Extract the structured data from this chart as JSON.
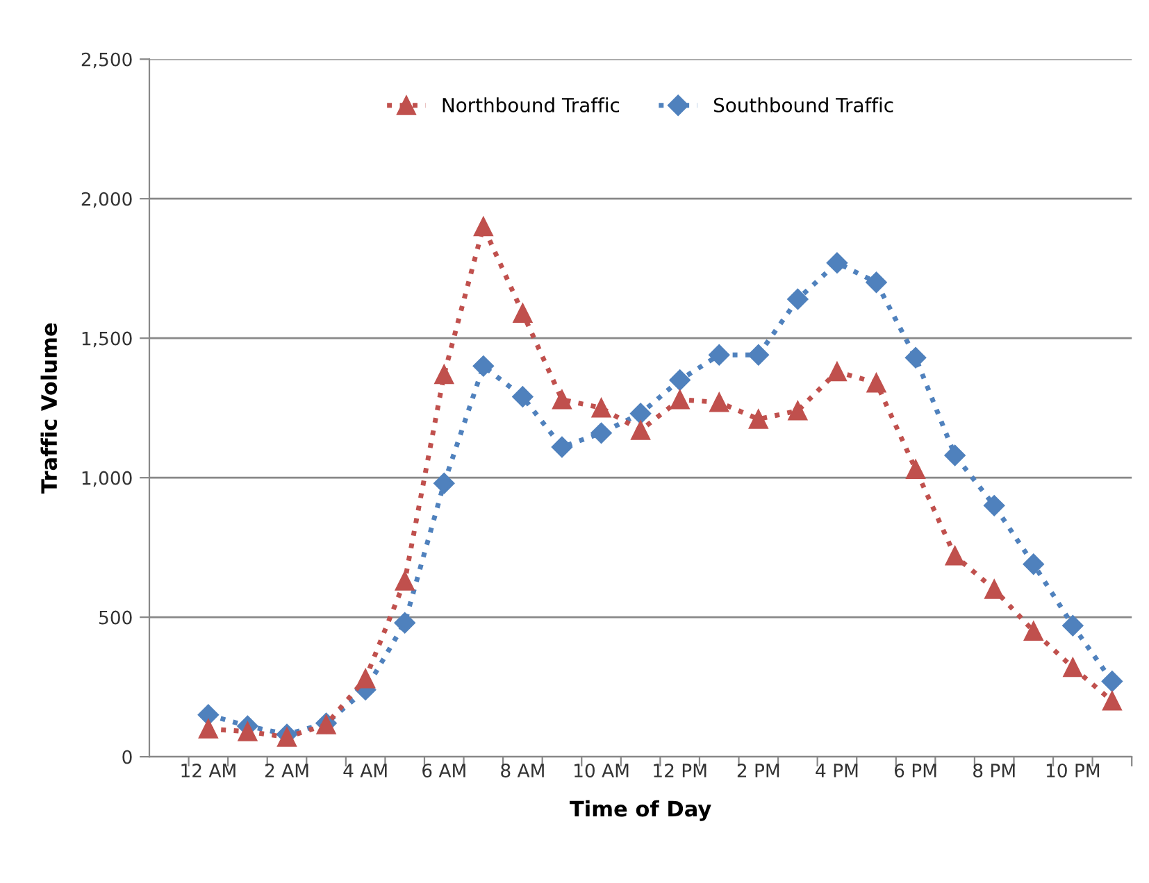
{
  "chart_data": {
    "type": "line",
    "xlabel": "Time of Day",
    "ylabel": "Traffic Volume",
    "categories": [
      "12 AM",
      null,
      "2 AM",
      null,
      "4 AM",
      null,
      "6 AM",
      null,
      "8 AM",
      null,
      "10 AM",
      null,
      "12 PM",
      null,
      "2 PM",
      null,
      "4 PM",
      null,
      "6 PM",
      null,
      "8 PM",
      null,
      "10 PM",
      null
    ],
    "series": [
      {
        "name": "Northbound Traffic",
        "color": "#c0504d",
        "marker": "triangle",
        "values": [
          100,
          90,
          70,
          115,
          280,
          630,
          1370,
          1900,
          1590,
          1280,
          1250,
          1170,
          1280,
          1270,
          1210,
          1240,
          1380,
          1340,
          1030,
          720,
          600,
          450,
          320,
          200
        ]
      },
      {
        "name": "Southbound Traffic",
        "color": "#4f81bd",
        "marker": "diamond",
        "values": [
          150,
          110,
          80,
          120,
          240,
          480,
          980,
          1400,
          1290,
          1110,
          1160,
          1230,
          1350,
          1440,
          1440,
          1640,
          1770,
          1700,
          1430,
          1080,
          900,
          690,
          470,
          270
        ]
      }
    ],
    "ylim": [
      0,
      2500
    ],
    "yticks": [
      {
        "value": 0,
        "label": "0"
      },
      {
        "value": 500,
        "label": "500"
      },
      {
        "value": 1000,
        "label": "1,000"
      },
      {
        "value": 1500,
        "label": "1,500"
      },
      {
        "value": 2000,
        "label": "2,000"
      },
      {
        "value": 2500,
        "label": "2,500"
      }
    ],
    "grid": "y",
    "legend": "top",
    "line_style": "dotted"
  }
}
